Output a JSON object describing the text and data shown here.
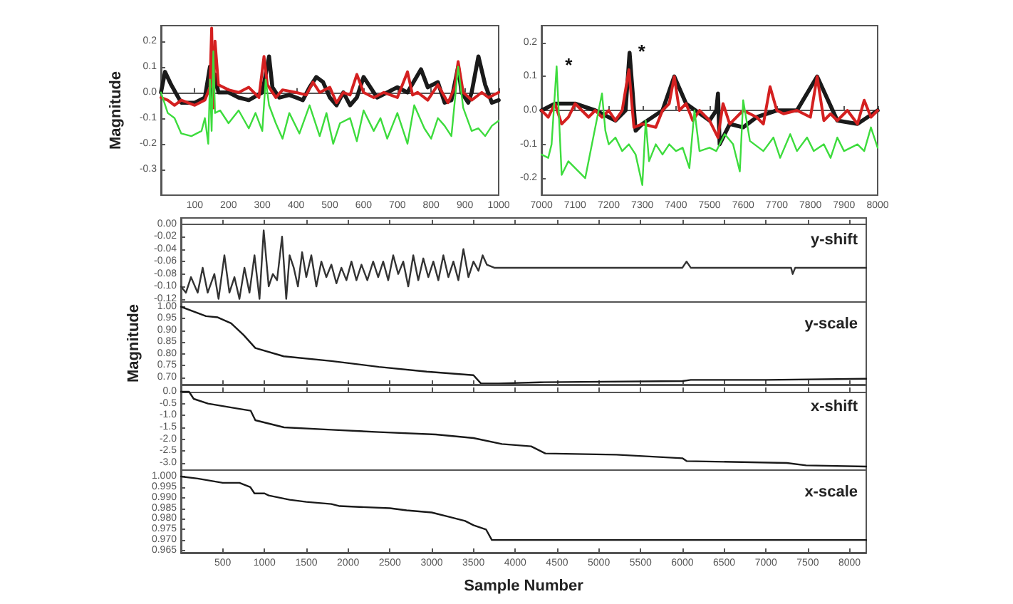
{
  "chart_data": [
    {
      "type": "line",
      "ylabel": "Magnitude",
      "xlim": [
        0,
        1000
      ],
      "ylim": [
        -0.4,
        0.26
      ],
      "xticks": [
        100,
        200,
        300,
        400,
        500,
        600,
        700,
        800,
        900,
        1000
      ],
      "yticks": [
        -0.3,
        -0.2,
        -0.1,
        {
          "value": 0,
          "label": "0.0"
        },
        0.1,
        0.2
      ],
      "series": [
        {
          "color": "#1a1a1a",
          "x": [
            0,
            12,
            30,
            60,
            100,
            130,
            145,
            150,
            160,
            170,
            200,
            230,
            260,
            300,
            320,
            330,
            350,
            380,
            400,
            420,
            440,
            460,
            480,
            500,
            520,
            540,
            560,
            580,
            600,
            620,
            640,
            670,
            700,
            730,
            770,
            790,
            820,
            840,
            860,
            880,
            890,
            910,
            920,
            940,
            960,
            980,
            1000
          ],
          "values": [
            0.0,
            0.08,
            0.03,
            -0.04,
            -0.04,
            -0.02,
            0.1,
            -0.05,
            0.07,
            0.0,
            0.0,
            -0.02,
            -0.03,
            0.0,
            0.14,
            0.02,
            -0.02,
            -0.01,
            -0.02,
            -0.03,
            0.02,
            0.06,
            0.04,
            -0.02,
            -0.05,
            0.0,
            -0.05,
            -0.02,
            0.06,
            0.02,
            -0.02,
            0.0,
            0.02,
            0.0,
            0.09,
            0.02,
            0.04,
            -0.04,
            -0.03,
            0.1,
            0.0,
            -0.04,
            0.0,
            0.14,
            0.03,
            -0.04,
            -0.03
          ]
        },
        {
          "color": "#d42020",
          "x": [
            0,
            20,
            40,
            60,
            100,
            130,
            145,
            150,
            155,
            160,
            170,
            200,
            230,
            260,
            290,
            305,
            315,
            340,
            360,
            400,
            430,
            450,
            470,
            500,
            520,
            540,
            560,
            580,
            600,
            630,
            660,
            700,
            730,
            745,
            760,
            790,
            820,
            850,
            870,
            880,
            895,
            920,
            950,
            970,
            1000
          ],
          "values": [
            -0.02,
            -0.03,
            -0.05,
            -0.03,
            -0.05,
            -0.03,
            0.02,
            0.25,
            -0.06,
            0.2,
            0.03,
            0.01,
            0.0,
            0.02,
            -0.02,
            0.14,
            0.03,
            -0.02,
            0.01,
            0.0,
            -0.01,
            0.04,
            0.0,
            0.02,
            -0.04,
            0.0,
            -0.01,
            0.07,
            0.0,
            -0.02,
            0.0,
            -0.02,
            0.08,
            -0.01,
            0.0,
            -0.03,
            0.03,
            -0.04,
            0.02,
            0.12,
            0.0,
            -0.03,
            0.0,
            -0.02,
            0.0
          ]
        },
        {
          "color": "#3ddc3d",
          "x": [
            0,
            20,
            40,
            60,
            90,
            120,
            130,
            140,
            145,
            150,
            155,
            160,
            175,
            200,
            230,
            260,
            280,
            300,
            310,
            320,
            340,
            360,
            380,
            410,
            440,
            470,
            490,
            510,
            530,
            560,
            580,
            600,
            630,
            650,
            670,
            700,
            730,
            750,
            780,
            800,
            820,
            840,
            860,
            880,
            895,
            920,
            940,
            960,
            980,
            1000
          ],
          "values": [
            0.0,
            -0.08,
            -0.1,
            -0.16,
            -0.17,
            -0.15,
            -0.1,
            -0.2,
            0.05,
            -0.15,
            0.16,
            -0.08,
            -0.07,
            -0.12,
            -0.07,
            -0.14,
            -0.08,
            -0.15,
            0.05,
            -0.05,
            -0.12,
            -0.18,
            -0.08,
            -0.16,
            -0.05,
            -0.17,
            -0.08,
            -0.2,
            -0.12,
            -0.1,
            -0.19,
            -0.07,
            -0.15,
            -0.1,
            -0.18,
            -0.08,
            -0.2,
            -0.05,
            -0.14,
            -0.18,
            -0.1,
            -0.13,
            -0.17,
            0.1,
            -0.06,
            -0.15,
            -0.14,
            -0.17,
            -0.13,
            -0.11
          ]
        }
      ]
    },
    {
      "type": "line",
      "xlim": [
        7000,
        8000
      ],
      "ylim": [
        -0.25,
        0.25
      ],
      "xticks": [
        7000,
        7100,
        7200,
        7300,
        7400,
        7500,
        7600,
        7700,
        7800,
        7900,
        8000
      ],
      "yticks": [
        -0.2,
        -0.1,
        {
          "value": 0,
          "label": "0.0"
        },
        0.1,
        0.2
      ],
      "annotations": [
        {
          "text": "*",
          "x": 7045,
          "y": 0.13
        },
        {
          "text": "*",
          "x": 7262,
          "y": 0.17
        }
      ],
      "series": [
        {
          "color": "#1a1a1a",
          "x": [
            7000,
            7040,
            7100,
            7160,
            7220,
            7250,
            7262,
            7280,
            7300,
            7360,
            7395,
            7430,
            7500,
            7520,
            7525,
            7530,
            7560,
            7600,
            7640,
            7700,
            7760,
            7820,
            7880,
            7940,
            8000
          ],
          "values": [
            0.0,
            0.02,
            0.02,
            0.0,
            -0.03,
            0.0,
            0.17,
            -0.06,
            -0.04,
            0.0,
            0.1,
            0.02,
            -0.03,
            0.0,
            0.05,
            -0.1,
            -0.04,
            -0.05,
            -0.02,
            0.0,
            0.0,
            0.1,
            -0.03,
            -0.04,
            0.0
          ]
        },
        {
          "color": "#d42020",
          "x": [
            7000,
            7020,
            7040,
            7060,
            7080,
            7100,
            7120,
            7140,
            7160,
            7180,
            7200,
            7220,
            7240,
            7260,
            7275,
            7300,
            7340,
            7360,
            7380,
            7395,
            7410,
            7430,
            7450,
            7470,
            7500,
            7525,
            7540,
            7560,
            7600,
            7640,
            7660,
            7680,
            7700,
            7720,
            7760,
            7800,
            7820,
            7840,
            7860,
            7880,
            7910,
            7940,
            7960,
            7980,
            8000
          ],
          "values": [
            0.0,
            -0.02,
            0.02,
            -0.04,
            -0.02,
            0.02,
            0.0,
            -0.02,
            0.0,
            -0.02,
            0.0,
            -0.03,
            0.0,
            0.12,
            -0.05,
            -0.04,
            -0.05,
            0.0,
            0.02,
            0.1,
            0.0,
            0.02,
            -0.03,
            0.0,
            -0.03,
            -0.08,
            0.02,
            -0.04,
            0.0,
            -0.02,
            -0.04,
            0.07,
            0.0,
            -0.01,
            0.0,
            -0.02,
            0.1,
            -0.03,
            -0.01,
            -0.03,
            0.0,
            -0.04,
            0.03,
            -0.02,
            0.0
          ]
        },
        {
          "color": "#3ddc3d",
          "x": [
            7000,
            7020,
            7030,
            7045,
            7060,
            7080,
            7100,
            7130,
            7150,
            7170,
            7180,
            7190,
            7200,
            7220,
            7240,
            7260,
            7280,
            7300,
            7310,
            7320,
            7340,
            7360,
            7380,
            7400,
            7420,
            7440,
            7455,
            7470,
            7500,
            7520,
            7545,
            7570,
            7590,
            7600,
            7620,
            7660,
            7690,
            7710,
            7740,
            7760,
            7790,
            7810,
            7840,
            7860,
            7880,
            7900,
            7940,
            7960,
            7980,
            8000
          ],
          "values": [
            -0.13,
            -0.14,
            -0.1,
            0.13,
            -0.19,
            -0.15,
            -0.17,
            -0.2,
            -0.1,
            0.0,
            0.05,
            -0.06,
            -0.1,
            -0.08,
            -0.12,
            -0.1,
            -0.13,
            -0.22,
            -0.03,
            -0.15,
            -0.1,
            -0.13,
            -0.1,
            -0.12,
            -0.11,
            -0.17,
            0.0,
            -0.12,
            -0.11,
            -0.12,
            -0.07,
            -0.1,
            -0.18,
            0.03,
            -0.09,
            -0.12,
            -0.08,
            -0.14,
            -0.07,
            -0.12,
            -0.08,
            -0.12,
            -0.1,
            -0.14,
            -0.08,
            -0.12,
            -0.1,
            -0.12,
            -0.05,
            -0.11
          ]
        }
      ]
    },
    {
      "type": "line",
      "tick_labels": "y",
      "annotations": [
        "y-shift"
      ],
      "xlim": [
        0,
        8200
      ],
      "ylim": [
        -0.125,
        0.01
      ],
      "xticks": [
        500,
        1000,
        1500,
        2000,
        2500,
        3000,
        3500,
        4000,
        4500,
        5000,
        5500,
        6000,
        6500,
        7000,
        7500,
        8000
      ],
      "yticks": [
        {
          "value": 0,
          "label": "0.00"
        },
        -0.02,
        -0.04,
        -0.06,
        -0.08,
        {
          "value": -0.1,
          "label": "-0.10"
        },
        -0.12
      ],
      "color": "#333333",
      "x": [
        0,
        60,
        120,
        200,
        260,
        320,
        400,
        450,
        520,
        580,
        640,
        700,
        760,
        820,
        880,
        940,
        990,
        1050,
        1100,
        1150,
        1210,
        1260,
        1300,
        1350,
        1400,
        1450,
        1500,
        1560,
        1620,
        1680,
        1740,
        1800,
        1860,
        1920,
        1980,
        2040,
        2100,
        2160,
        2230,
        2300,
        2360,
        2420,
        2480,
        2540,
        2600,
        2660,
        2720,
        2780,
        2840,
        2900,
        2960,
        3020,
        3080,
        3140,
        3200,
        3260,
        3320,
        3380,
        3440,
        3500,
        3560,
        3610,
        3660,
        3750,
        4000,
        5000,
        6000,
        6050,
        6100,
        7300,
        7320,
        7350,
        8200
      ],
      "values": [
        -0.1,
        -0.11,
        -0.085,
        -0.11,
        -0.07,
        -0.11,
        -0.08,
        -0.12,
        -0.05,
        -0.11,
        -0.085,
        -0.12,
        -0.07,
        -0.11,
        -0.05,
        -0.12,
        -0.01,
        -0.1,
        -0.08,
        -0.09,
        -0.02,
        -0.12,
        -0.05,
        -0.07,
        -0.1,
        -0.045,
        -0.085,
        -0.05,
        -0.1,
        -0.06,
        -0.085,
        -0.065,
        -0.095,
        -0.07,
        -0.09,
        -0.06,
        -0.09,
        -0.065,
        -0.09,
        -0.06,
        -0.085,
        -0.06,
        -0.09,
        -0.05,
        -0.08,
        -0.06,
        -0.1,
        -0.05,
        -0.09,
        -0.055,
        -0.085,
        -0.06,
        -0.09,
        -0.05,
        -0.085,
        -0.06,
        -0.09,
        -0.04,
        -0.085,
        -0.06,
        -0.075,
        -0.05,
        -0.065,
        -0.07,
        -0.07,
        -0.07,
        -0.07,
        -0.06,
        -0.07,
        -0.07,
        -0.08,
        -0.07,
        -0.07
      ]
    },
    {
      "type": "line",
      "tick_labels": "y",
      "ylabel": "Magnitude",
      "annotations": [
        "y-scale"
      ],
      "xlim": [
        0,
        8200
      ],
      "ylim": [
        0.67,
        1.02
      ],
      "xticks": [
        500,
        1000,
        1500,
        2000,
        2500,
        3000,
        3500,
        4000,
        4500,
        5000,
        5500,
        6000,
        6500,
        7000,
        7500,
        8000
      ],
      "yticks": [
        {
          "value": 1,
          "label": "1.00"
        },
        0.95,
        {
          "value": 0.9,
          "label": "0.90"
        },
        0.85,
        {
          "value": 0.8,
          "label": "0.80"
        },
        0.75,
        {
          "value": 0.7,
          "label": "0.70"
        }
      ],
      "color": "#1a1a1a",
      "x": [
        0,
        300,
        440,
        600,
        750,
        890,
        1230,
        1800,
        2370,
        2940,
        3500,
        3590,
        3800,
        4300,
        6000,
        6100,
        7000,
        8200
      ],
      "values": [
        1.0,
        0.96,
        0.955,
        0.93,
        0.88,
        0.825,
        0.79,
        0.77,
        0.745,
        0.725,
        0.71,
        0.675,
        0.675,
        0.68,
        0.685,
        0.69,
        0.69,
        0.695
      ]
    },
    {
      "type": "line",
      "tick_labels": "y",
      "annotations": [
        "x-shift"
      ],
      "xlim": [
        0,
        8200
      ],
      "ylim": [
        -3.3,
        0.3
      ],
      "xticks": [
        500,
        1000,
        1500,
        2000,
        2500,
        3000,
        3500,
        4000,
        4500,
        5000,
        5500,
        6000,
        6500,
        7000,
        7500,
        8000
      ],
      "yticks": [
        {
          "value": 0,
          "label": "0.0"
        },
        -0.5,
        {
          "value": -1,
          "label": "-1.0"
        },
        -1.5,
        {
          "value": -2,
          "label": "-2.0"
        },
        -2.5,
        {
          "value": -3,
          "label": "-3.0"
        }
      ],
      "color": "#1a1a1a",
      "x": [
        0,
        97,
        153,
        324,
        665,
        835,
        890,
        1233,
        1800,
        2370,
        3050,
        3500,
        3840,
        4190,
        4360,
        5210,
        6000,
        6050,
        7250,
        7480,
        8200
      ],
      "values": [
        0.0,
        0.0,
        -0.3,
        -0.5,
        -0.7,
        -0.8,
        -1.2,
        -1.5,
        -1.6,
        -1.7,
        -1.8,
        -1.95,
        -2.2,
        -2.3,
        -2.6,
        -2.65,
        -2.8,
        -2.92,
        -3.0,
        -3.1,
        -3.15
      ]
    },
    {
      "type": "line",
      "xlabel": "Sample Number",
      "annotations": [
        "x-scale"
      ],
      "xlim": [
        0,
        8200
      ],
      "ylim": [
        0.964,
        1.003
      ],
      "xticks": [
        500,
        1000,
        1500,
        2000,
        2500,
        3000,
        3500,
        4000,
        4500,
        5000,
        5500,
        6000,
        6500,
        7000,
        7500,
        8000
      ],
      "yticks": [
        {
          "value": 1,
          "label": "1.000"
        },
        0.995,
        {
          "value": 0.99,
          "label": "0.990"
        },
        0.985,
        {
          "value": 0.98,
          "label": "0.980"
        },
        0.975,
        {
          "value": 0.97,
          "label": "0.970"
        },
        0.965
      ],
      "color": "#1a1a1a",
      "x": [
        0,
        200,
        500,
        700,
        830,
        880,
        1000,
        1050,
        1300,
        1500,
        1800,
        1900,
        2500,
        2700,
        3000,
        3200,
        3400,
        3500,
        3650,
        3720,
        4000,
        8200
      ],
      "values": [
        1.0,
        0.999,
        0.997,
        0.997,
        0.995,
        0.992,
        0.992,
        0.991,
        0.989,
        0.988,
        0.987,
        0.986,
        0.985,
        0.984,
        0.983,
        0.981,
        0.979,
        0.977,
        0.975,
        0.97,
        0.97,
        0.97
      ]
    }
  ]
}
